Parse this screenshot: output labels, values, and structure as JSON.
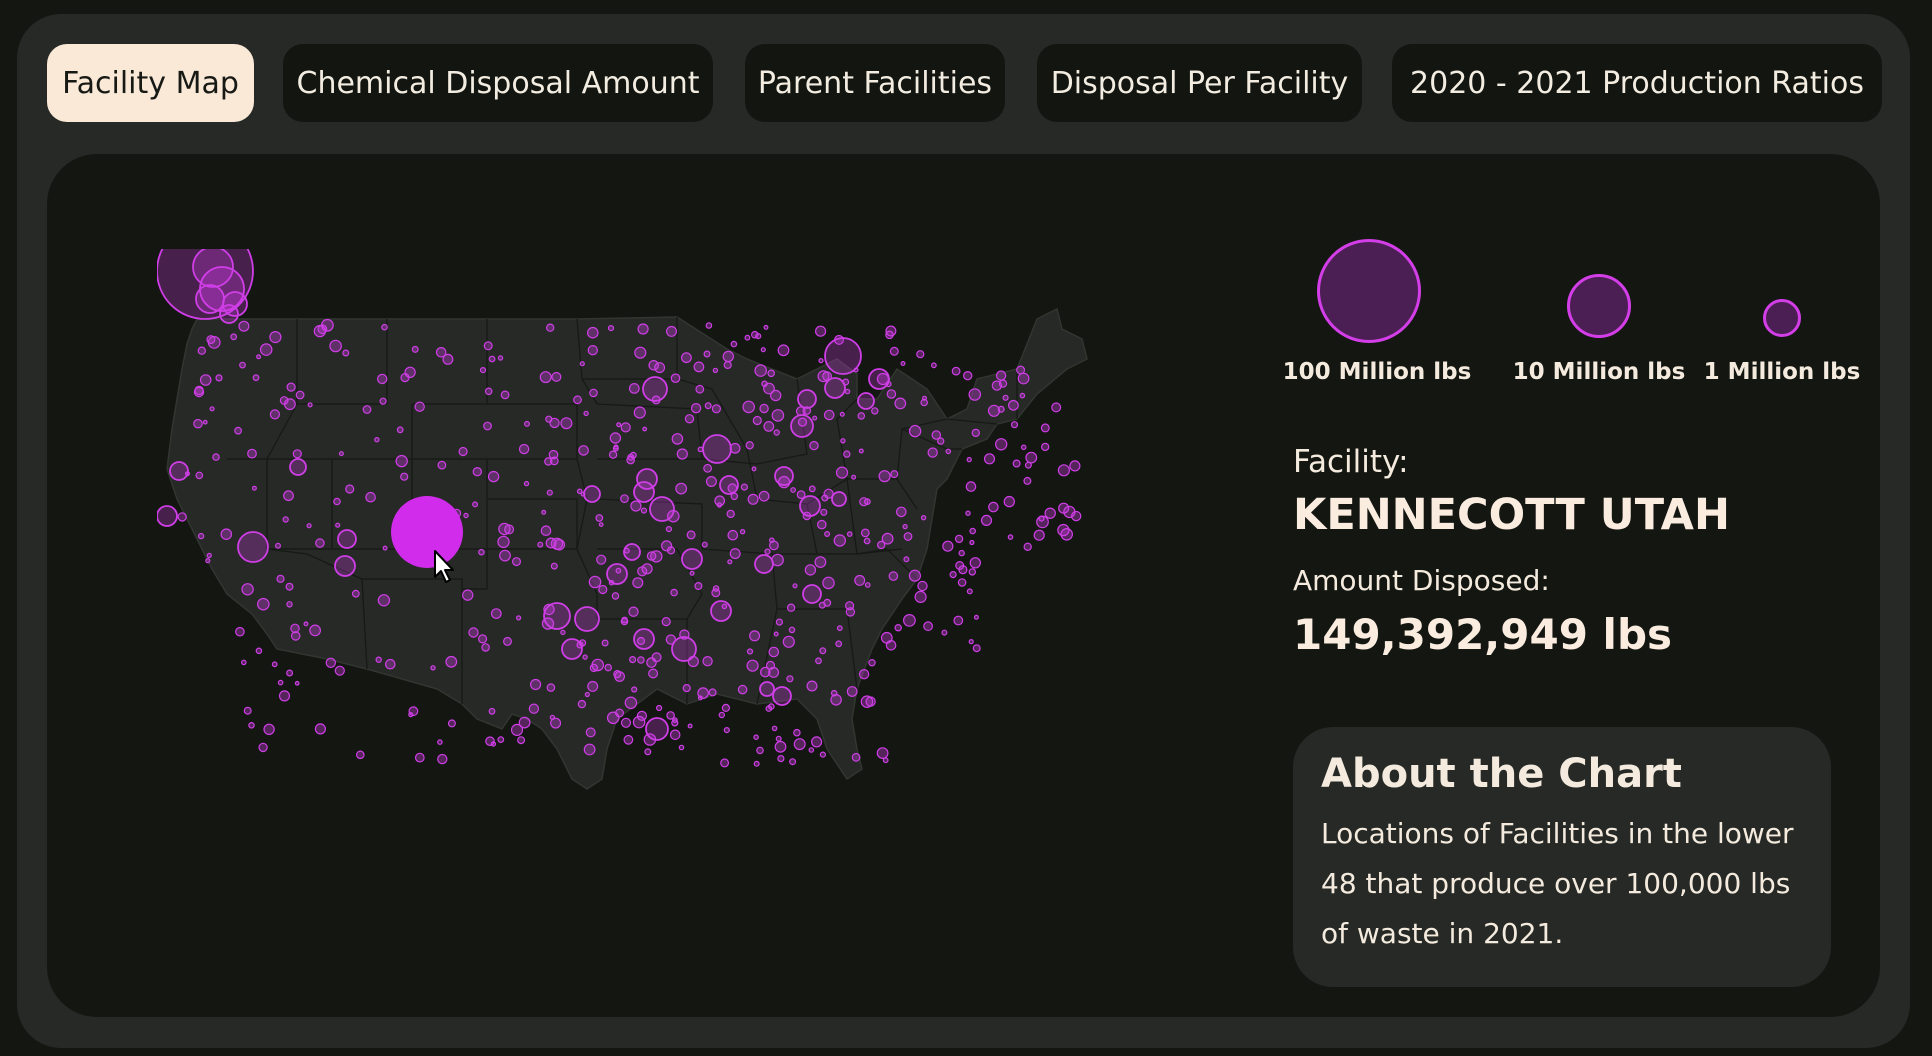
{
  "tabs": [
    {
      "label": "Facility Map",
      "active": true
    },
    {
      "label": "Chemical Disposal Amount",
      "active": false
    },
    {
      "label": "Parent Facilities",
      "active": false
    },
    {
      "label": "Disposal Per Facility",
      "active": false
    },
    {
      "label": "2020 - 2021 Production Ratios",
      "active": false
    }
  ],
  "legend": {
    "items": [
      {
        "label": "100 Million lbs",
        "amount_million_lbs": 100
      },
      {
        "label": "10 Million lbs",
        "amount_million_lbs": 10
      },
      {
        "label": "1 Million lbs",
        "amount_million_lbs": 1
      }
    ]
  },
  "selected": {
    "facility_label": "Facility:",
    "facility_name": "KENNECOTT UTAH",
    "amount_label": "Amount Disposed:",
    "amount_value": "149,392,949 lbs"
  },
  "about": {
    "title": "About the Chart",
    "text": "Locations of Facilities in the lower 48 that produce over 100,000 lbs of waste in 2021."
  },
  "colors": {
    "bubble": "#cf3ee6",
    "bubble_fill": "#7a2b86",
    "selected_bubble": "#d12ceb",
    "land": "#262926",
    "borders": "#141613",
    "active_tab": "#fbe9d8"
  },
  "icons": {
    "cursor": "mouse-pointer-icon"
  }
}
